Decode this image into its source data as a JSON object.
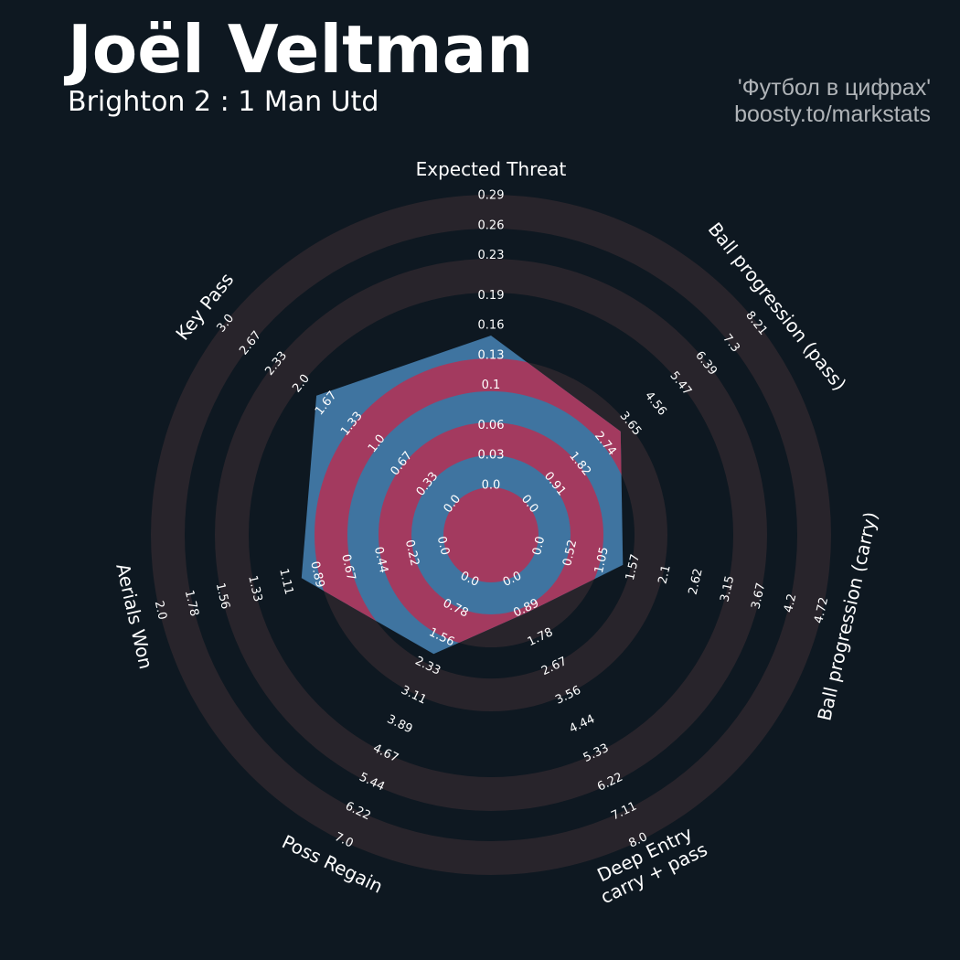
{
  "chart_data": {
    "type": "radar",
    "title": "Joël Veltman",
    "subtitle": "Brighton 2 : 1 Man Utd",
    "credits": [
      "'Футбол в цифрах'",
      "boosty.to/markstats"
    ],
    "params": [
      "Expected Threat",
      "Ball progression (pass)",
      "Ball progression (carry)",
      "Deep Entry\ncarry + pass",
      "Poss Regain",
      "Aerials Won",
      "Key Pass"
    ],
    "ranges": [
      [
        0,
        0.29
      ],
      [
        0,
        8.21
      ],
      [
        0,
        4.72
      ],
      [
        0,
        8
      ],
      [
        0,
        7
      ],
      [
        0,
        2
      ],
      [
        0,
        3
      ]
    ],
    "ticks": [
      [
        {
          "value": 0,
          "label": "0.0"
        },
        0.03,
        0.06,
        0.1,
        0.13,
        0.16,
        0.19,
        0.23,
        0.26,
        0.29
      ],
      [
        {
          "value": 0,
          "label": "0.0"
        },
        0.91,
        1.82,
        2.74,
        3.65,
        4.56,
        5.47,
        6.39,
        7.3,
        8.21
      ],
      [
        {
          "value": 0,
          "label": "0.0"
        },
        0.52,
        1.05,
        1.57,
        2.1,
        2.62,
        3.15,
        3.67,
        4.2,
        4.72
      ],
      [
        {
          "value": 0,
          "label": "0.0"
        },
        0.89,
        1.78,
        2.67,
        3.56,
        4.44,
        5.33,
        6.22,
        7.11,
        {
          "value": 8,
          "label": "8.0"
        }
      ],
      [
        {
          "value": 0,
          "label": "0.0"
        },
        0.78,
        1.56,
        2.33,
        3.11,
        3.89,
        4.67,
        5.44,
        6.22,
        {
          "value": 7,
          "label": "7.0"
        }
      ],
      [
        {
          "value": 0,
          "label": "0.0"
        },
        0.22,
        0.44,
        0.67,
        0.89,
        1.11,
        1.33,
        1.56,
        1.78,
        {
          "value": 2,
          "label": "2.0"
        }
      ],
      [
        {
          "value": 0,
          "label": "0.0"
        },
        0.33,
        0.67,
        {
          "value": 1,
          "label": "1.0"
        },
        1.33,
        1.67,
        {
          "value": 2,
          "label": "2.0"
        },
        2.33,
        2.67,
        {
          "value": 3,
          "label": "3.0"
        }
      ]
    ],
    "values": [
      0.15,
      3.3,
      1.4,
      1,
      2,
      1,
      1.8
    ],
    "color": "#3f74a0",
    "ring_color": "#a33a5f",
    "ring_background": "#28242b"
  }
}
